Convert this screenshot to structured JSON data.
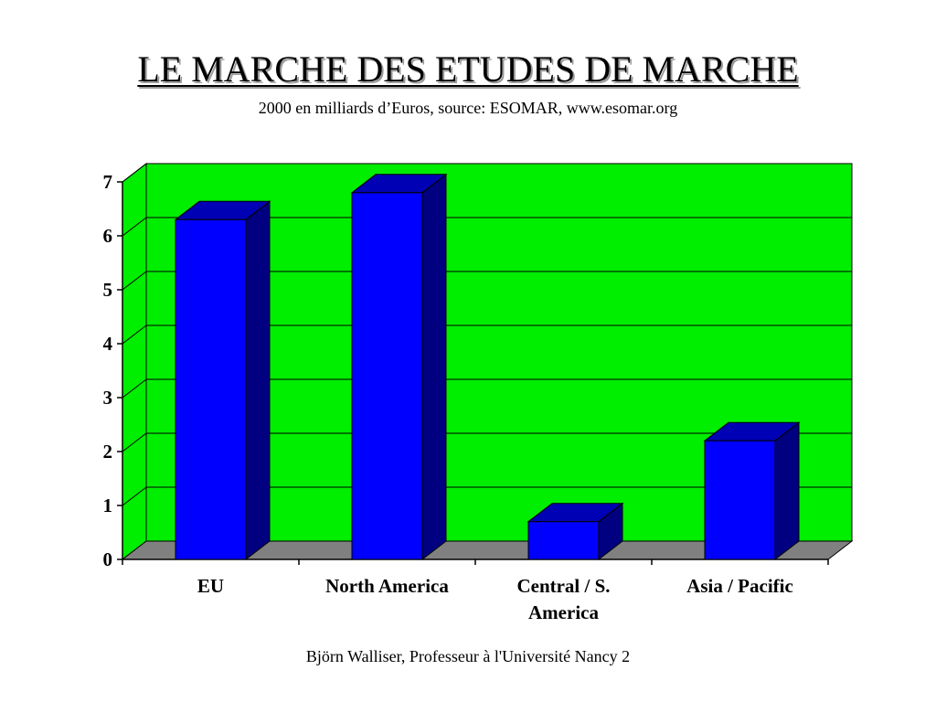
{
  "slide": {
    "title": "LE MARCHE DES ETUDES DE MARCHE",
    "subtitle": "2000 en milliards d’Euros, source: ESOMAR, www.esomar.org",
    "footer": "Björn Walliser, Professeur à l'Université Nancy 2"
  },
  "chart_data": {
    "type": "bar",
    "title": "",
    "xlabel": "",
    "ylabel": "",
    "categories": [
      "EU",
      "North America",
      "Central / S. America",
      "Asia / Pacific"
    ],
    "category_label_lines": [
      [
        "EU"
      ],
      [
        "North America"
      ],
      [
        "Central / S.",
        "America"
      ],
      [
        "Asia / Pacific"
      ]
    ],
    "values": [
      6.3,
      6.8,
      0.7,
      2.2
    ],
    "ylim": [
      0,
      7
    ],
    "yticks": [
      0,
      1,
      2,
      3,
      4,
      5,
      6,
      7
    ],
    "grid": true,
    "legend": "none",
    "three_d": true,
    "colors": {
      "plot_background": "#00ee00",
      "floor": "#808080",
      "bar_front": "#0000ff",
      "bar_top": "#0000b4",
      "bar_side": "#000080",
      "gridline": "#000000"
    }
  }
}
